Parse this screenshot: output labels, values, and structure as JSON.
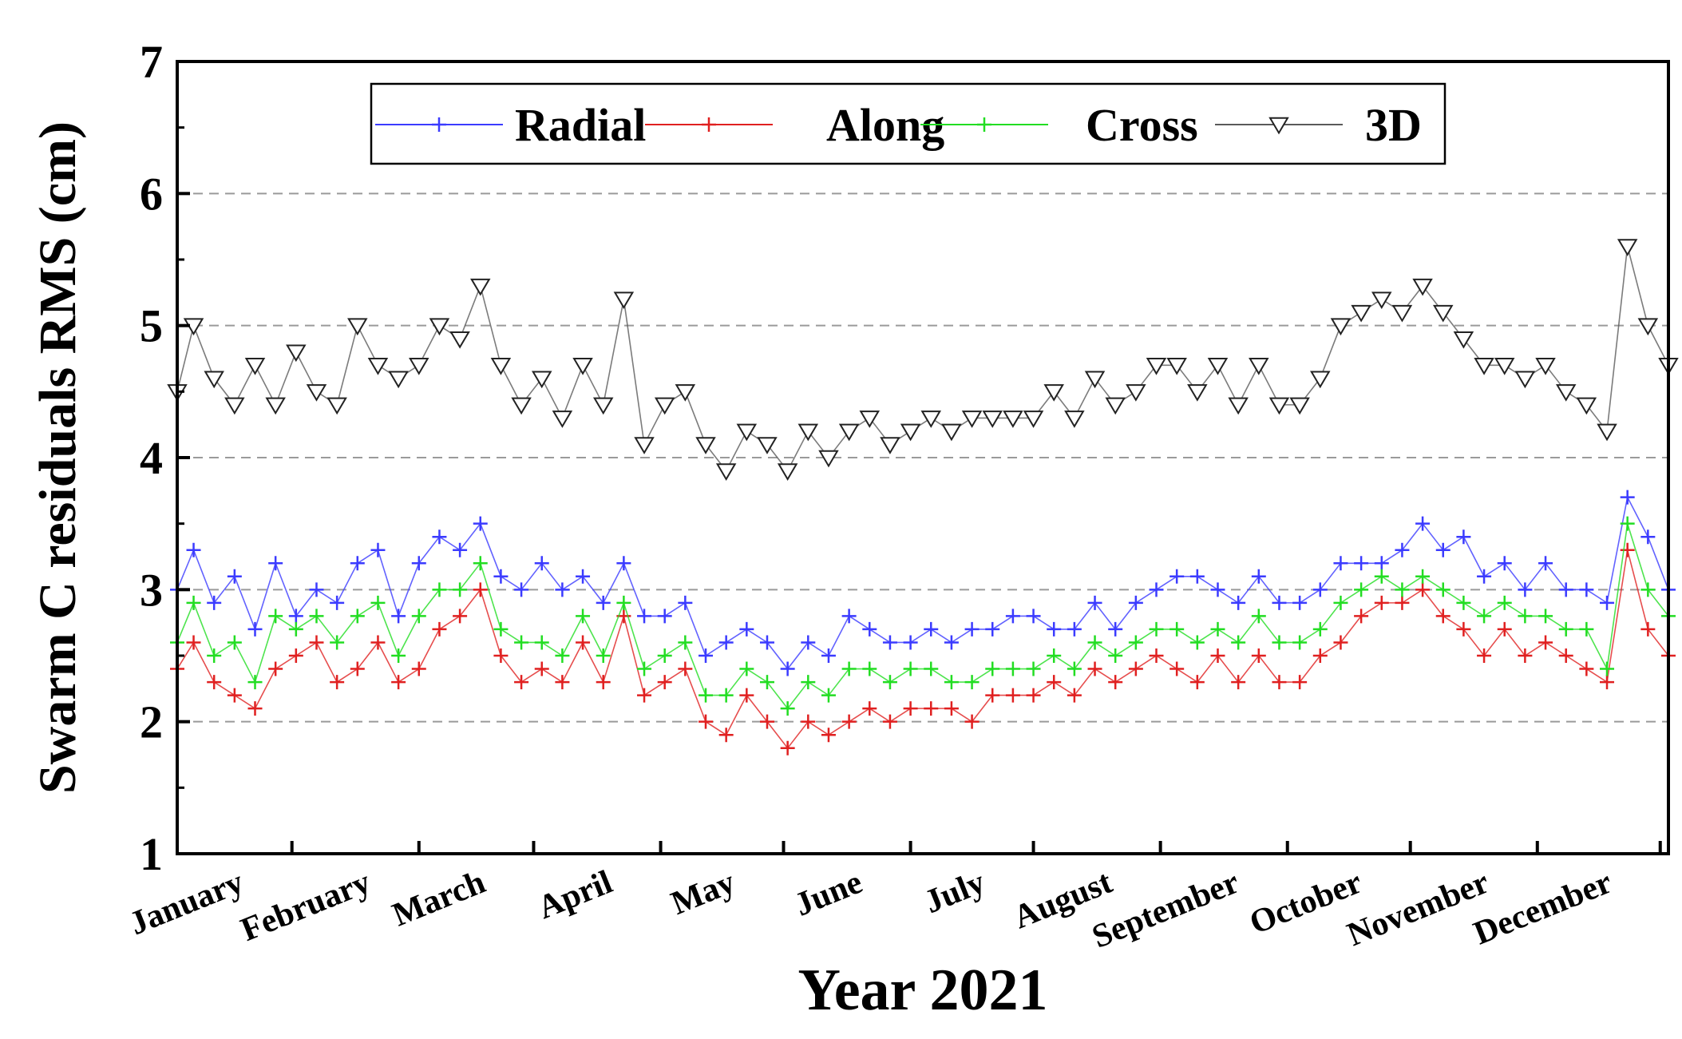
{
  "chart_data": {
    "type": "line",
    "title": "",
    "xlabel": "Year 2021",
    "ylabel": "Swarm C residuals RMS (cm)",
    "ylim": [
      1,
      7
    ],
    "yticks": [
      "1",
      "2",
      "3",
      "4",
      "5",
      "6",
      "7"
    ],
    "gridlines_y": [
      2,
      3,
      4,
      5,
      6
    ],
    "grid": "horizontal dashed",
    "legend_position": "top",
    "x_unit": "day of year",
    "xlim": [
      1,
      365
    ],
    "month_labels": [
      "January",
      "February",
      "March",
      "April",
      "May",
      "June",
      "July",
      "August",
      "September",
      "October",
      "November",
      "December"
    ],
    "month_start_days": [
      1,
      32,
      60,
      91,
      121,
      152,
      182,
      213,
      244,
      274,
      305,
      335
    ],
    "sample_days": [
      1,
      5,
      10,
      15,
      20,
      25,
      30,
      35,
      40,
      45,
      50,
      55,
      60,
      65,
      70,
      75,
      80,
      85,
      90,
      95,
      100,
      105,
      110,
      115,
      120,
      125,
      130,
      135,
      140,
      145,
      150,
      155,
      160,
      165,
      170,
      175,
      180,
      185,
      190,
      195,
      200,
      205,
      210,
      215,
      220,
      225,
      230,
      235,
      240,
      245,
      250,
      255,
      260,
      265,
      270,
      275,
      280,
      285,
      290,
      295,
      300,
      305,
      310,
      315,
      320,
      325,
      330,
      335,
      340,
      345,
      350,
      355,
      360,
      365
    ],
    "series": [
      {
        "name": "Radial",
        "color": "#3b3bff",
        "marker": "plus",
        "values": [
          3.0,
          3.3,
          2.9,
          3.1,
          2.7,
          3.2,
          2.8,
          3.0,
          2.9,
          3.2,
          3.3,
          2.8,
          3.2,
          3.4,
          3.3,
          3.5,
          3.1,
          3.0,
          3.2,
          3.0,
          3.1,
          2.9,
          3.2,
          2.8,
          2.8,
          2.9,
          2.5,
          2.6,
          2.7,
          2.6,
          2.4,
          2.6,
          2.5,
          2.8,
          2.7,
          2.6,
          2.6,
          2.7,
          2.6,
          2.7,
          2.7,
          2.8,
          2.8,
          2.7,
          2.7,
          2.9,
          2.7,
          2.9,
          3.0,
          3.1,
          3.1,
          3.0,
          2.9,
          3.1,
          2.9,
          2.9,
          3.0,
          3.2,
          3.2,
          3.2,
          3.3,
          3.5,
          3.3,
          3.4,
          3.1,
          3.2,
          3.0,
          3.2,
          3.0,
          3.0,
          2.9,
          3.7,
          3.4,
          3.0
        ]
      },
      {
        "name": "Along",
        "color": "#e02020",
        "marker": "plus",
        "values": [
          2.4,
          2.6,
          2.3,
          2.2,
          2.1,
          2.4,
          2.5,
          2.6,
          2.3,
          2.4,
          2.6,
          2.3,
          2.4,
          2.7,
          2.8,
          3.0,
          2.5,
          2.3,
          2.4,
          2.3,
          2.6,
          2.3,
          2.8,
          2.2,
          2.3,
          2.4,
          2.0,
          1.9,
          2.2,
          2.0,
          1.8,
          2.0,
          1.9,
          2.0,
          2.1,
          2.0,
          2.1,
          2.1,
          2.1,
          2.0,
          2.2,
          2.2,
          2.2,
          2.3,
          2.2,
          2.4,
          2.3,
          2.4,
          2.5,
          2.4,
          2.3,
          2.5,
          2.3,
          2.5,
          2.3,
          2.3,
          2.5,
          2.6,
          2.8,
          2.9,
          2.9,
          3.0,
          2.8,
          2.7,
          2.5,
          2.7,
          2.5,
          2.6,
          2.5,
          2.4,
          2.3,
          3.3,
          2.7,
          2.5
        ]
      },
      {
        "name": "Cross",
        "color": "#22dd22",
        "marker": "plus",
        "values": [
          2.6,
          2.9,
          2.5,
          2.6,
          2.3,
          2.8,
          2.7,
          2.8,
          2.6,
          2.8,
          2.9,
          2.5,
          2.8,
          3.0,
          3.0,
          3.2,
          2.7,
          2.6,
          2.6,
          2.5,
          2.8,
          2.5,
          2.9,
          2.4,
          2.5,
          2.6,
          2.2,
          2.2,
          2.4,
          2.3,
          2.1,
          2.3,
          2.2,
          2.4,
          2.4,
          2.3,
          2.4,
          2.4,
          2.3,
          2.3,
          2.4,
          2.4,
          2.4,
          2.5,
          2.4,
          2.6,
          2.5,
          2.6,
          2.7,
          2.7,
          2.6,
          2.7,
          2.6,
          2.8,
          2.6,
          2.6,
          2.7,
          2.9,
          3.0,
          3.1,
          3.0,
          3.1,
          3.0,
          2.9,
          2.8,
          2.9,
          2.8,
          2.8,
          2.7,
          2.7,
          2.4,
          3.5,
          3.0,
          2.8
        ]
      },
      {
        "name": "3D",
        "color": "#5a5a5a",
        "marker": "triangle-down",
        "values": [
          4.5,
          5.0,
          4.6,
          4.4,
          4.7,
          4.4,
          4.8,
          4.5,
          4.4,
          5.0,
          4.7,
          4.6,
          4.7,
          5.0,
          4.9,
          5.3,
          4.7,
          4.4,
          4.6,
          4.3,
          4.7,
          4.4,
          5.2,
          4.1,
          4.4,
          4.5,
          4.1,
          3.9,
          4.2,
          4.1,
          3.9,
          4.2,
          4.0,
          4.2,
          4.3,
          4.1,
          4.2,
          4.3,
          4.2,
          4.3,
          4.3,
          4.3,
          4.3,
          4.5,
          4.3,
          4.6,
          4.4,
          4.5,
          4.7,
          4.7,
          4.5,
          4.7,
          4.4,
          4.7,
          4.4,
          4.4,
          4.6,
          5.0,
          5.1,
          5.2,
          5.1,
          5.3,
          5.1,
          4.9,
          4.7,
          4.7,
          4.6,
          4.7,
          4.5,
          4.4,
          4.2,
          5.6,
          5.0,
          4.7
        ]
      }
    ]
  }
}
